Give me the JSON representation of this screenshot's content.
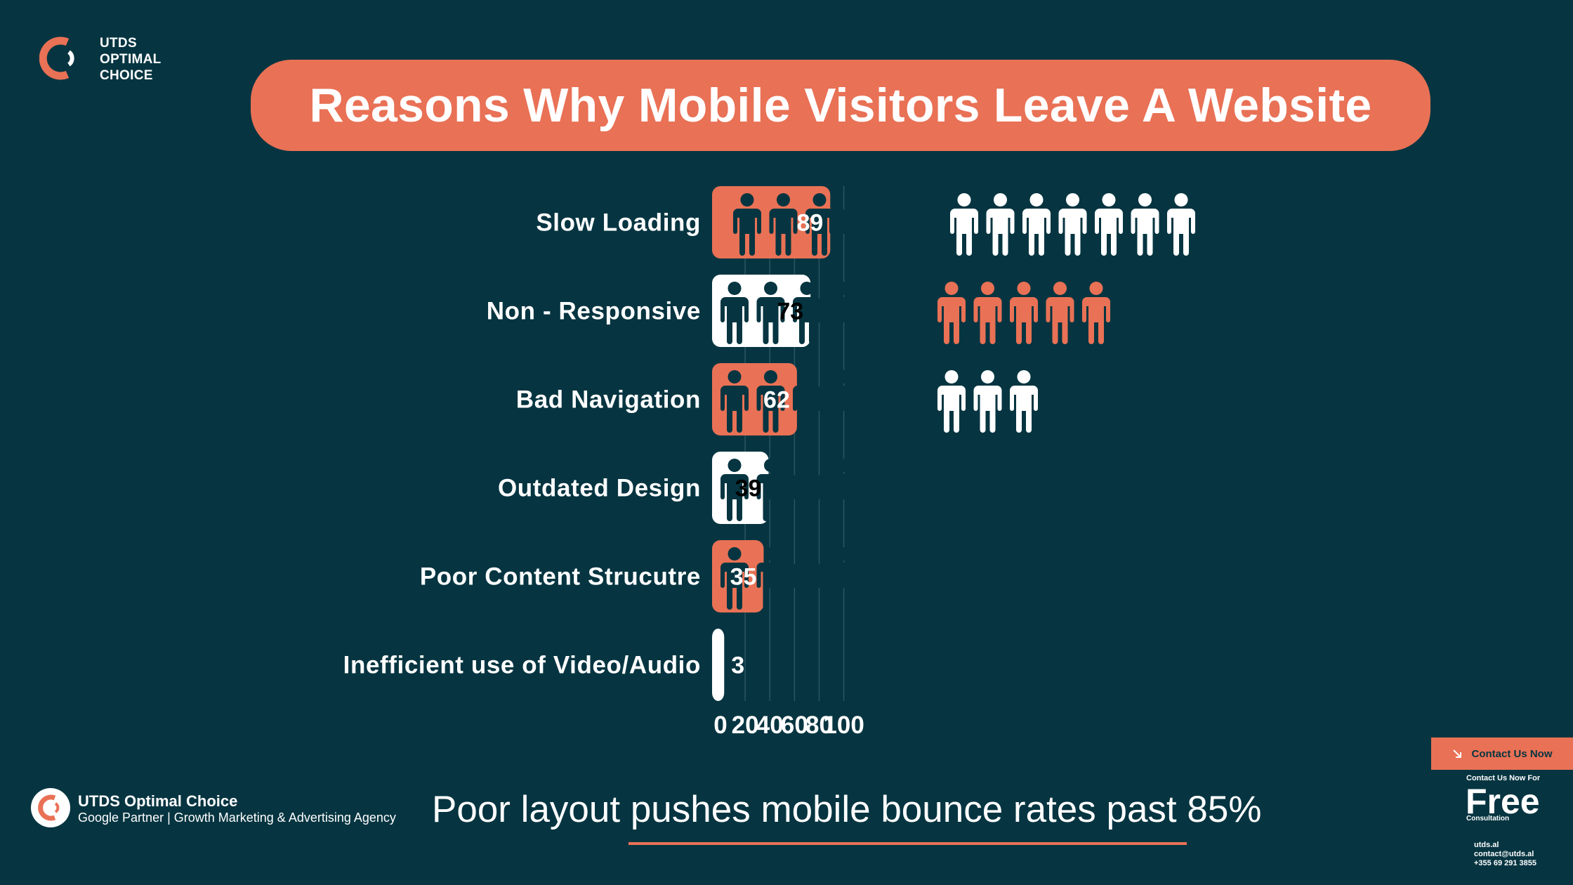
{
  "brand": {
    "top_lines": [
      "UTDS",
      "OPTIMAL",
      "CHOICE"
    ],
    "footer_name": "UTDS Optimal Choice",
    "footer_desc": "Google Partner | Growth Marketing & Advertising Agency"
  },
  "colors": {
    "background": "#063541",
    "accent": "#e97155",
    "white": "#ffffff",
    "grid": "#2c5560"
  },
  "tagline": "Poor layout pushes mobile bounce rates past 85%",
  "contact": {
    "button_label": "Contact Us Now",
    "small_label": "Contact Us Now For",
    "big_label": "Free",
    "sub_label": "Consultation",
    "website": "utds.al",
    "email": "contact@utds.al",
    "phone": "+355 69 291 3855"
  },
  "chart_data": {
    "type": "bar",
    "orientation": "horizontal",
    "title": "Reasons Why Mobile Visitors Leave A Website",
    "categories": [
      "Slow Loading",
      "Non - Responsive",
      "Bad Navigation",
      "Outdated Design",
      "Poor Content Strucutre",
      "Inefficient use of Video/Audio"
    ],
    "values": [
      89,
      73,
      62,
      39,
      35,
      3
    ],
    "data_labels": [
      "89",
      "73",
      "62",
      "39",
      "35",
      "3"
    ],
    "xlim": [
      0,
      100
    ],
    "xticks": [
      0,
      20,
      40,
      60,
      80,
      100
    ],
    "xtick_labels": [
      "0",
      "20",
      "40",
      "60",
      "80",
      "100"
    ],
    "grid": true,
    "bar_colors": [
      "#e97155",
      "#ffffff",
      "#e97155",
      "#ffffff",
      "#e97155",
      "#ffffff"
    ],
    "person_icons": [
      {
        "primary": 6,
        "secondary": 7
      },
      {
        "primary": 6,
        "secondary": 5
      },
      {
        "primary": 6,
        "secondary": 3
      },
      {
        "primary": 5,
        "secondary": 0
      },
      {
        "primary": 4,
        "secondary": 0
      },
      {
        "primary": 0,
        "secondary": 0
      }
    ]
  }
}
